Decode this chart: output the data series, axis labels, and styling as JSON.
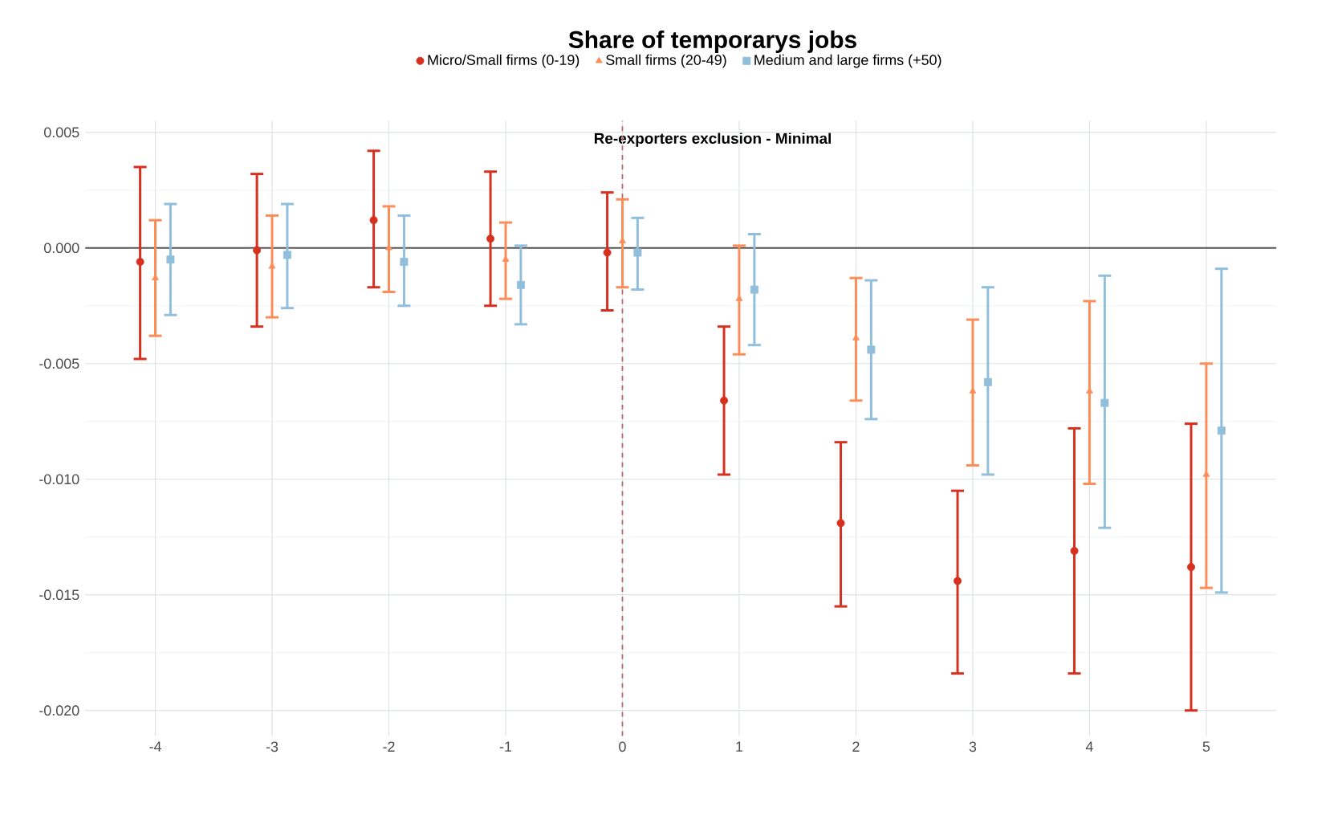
{
  "chart_data": {
    "type": "scatter",
    "title": "Share of temporarys jobs",
    "subtitle": "Re-exporters exclusion - Minimal",
    "xlim": [
      -4.6,
      5.6
    ],
    "xticks": [
      -4,
      -3,
      -2,
      -1,
      0,
      1,
      2,
      3,
      4,
      5
    ],
    "ylim": [
      -0.0211,
      0.0055
    ],
    "yticks": [
      {
        "value": -0.02,
        "label": "-0.020"
      },
      {
        "value": -0.015,
        "label": "-0.015"
      },
      {
        "value": -0.01,
        "label": "-0.010"
      },
      {
        "value": -0.005,
        "label": "-0.005"
      },
      {
        "value": 0,
        "label": "0.000"
      },
      {
        "value": 0.005,
        "label": "0.005"
      }
    ],
    "grid": true,
    "legend": "top",
    "series": [
      {
        "name": "Micro/Small firms (0-19)",
        "color": "#d7301f",
        "marker": "circle",
        "x": [
          -4.13,
          -3.13,
          -2.13,
          -1.13,
          -0.13,
          0.87,
          1.87,
          2.87,
          3.87,
          4.87
        ],
        "values": [
          -0.0006,
          -0.0001,
          0.0012,
          0.0004,
          -0.0002,
          -0.0066,
          -0.0119,
          -0.0144,
          -0.0131,
          -0.0138
        ],
        "errors": [
          [
            -0.0048,
            0.0035
          ],
          [
            -0.0034,
            0.0032
          ],
          [
            -0.0017,
            0.0042
          ],
          [
            -0.0025,
            0.0033
          ],
          [
            -0.0027,
            0.0024
          ],
          [
            -0.0098,
            -0.0034
          ],
          [
            -0.0155,
            -0.0084
          ],
          [
            -0.0184,
            -0.0105
          ],
          [
            -0.0184,
            -0.0078
          ],
          [
            -0.02,
            -0.0076
          ]
        ]
      },
      {
        "name": "Small firms (20-49)",
        "color": "#fc8d59",
        "marker": "triangle",
        "x": [
          -4,
          -3,
          -2,
          -1,
          0,
          1,
          2,
          3,
          4,
          5
        ],
        "values": [
          -0.0013,
          -0.0008,
          0.0,
          -0.0005,
          0.0003,
          -0.0022,
          -0.0039,
          -0.0062,
          -0.0062,
          -0.0098
        ],
        "errors": [
          [
            -0.0038,
            0.0012
          ],
          [
            -0.003,
            0.0014
          ],
          [
            -0.0019,
            0.0018
          ],
          [
            -0.0022,
            0.0011
          ],
          [
            -0.0017,
            0.0021
          ],
          [
            -0.0046,
            0.0001
          ],
          [
            -0.0066,
            -0.0013
          ],
          [
            -0.0094,
            -0.0031
          ],
          [
            -0.0102,
            -0.0023
          ],
          [
            -0.0147,
            -0.005
          ]
        ]
      },
      {
        "name": "Medium and large firms (+50)",
        "color": "#91bfdb",
        "marker": "square",
        "x": [
          -3.87,
          -2.87,
          -1.87,
          -0.87,
          0.13,
          1.13,
          2.13,
          3.13,
          4.13,
          5.13
        ],
        "values": [
          -0.0005,
          -0.0003,
          -0.0006,
          -0.0016,
          -0.0002,
          -0.0018,
          -0.0044,
          -0.0058,
          -0.0067,
          -0.0079
        ],
        "errors": [
          [
            -0.0029,
            0.0019
          ],
          [
            -0.0026,
            0.0019
          ],
          [
            -0.0025,
            0.0014
          ],
          [
            -0.0033,
            0.0001
          ],
          [
            -0.0018,
            0.0013
          ],
          [
            -0.0042,
            0.0006
          ],
          [
            -0.0074,
            -0.0014
          ],
          [
            -0.0098,
            -0.0017
          ],
          [
            -0.0121,
            -0.0012
          ],
          [
            -0.0149,
            -0.0009
          ]
        ]
      }
    ],
    "ref_lines": [
      {
        "axis": "y",
        "value": 0,
        "color": "#555555",
        "line_style": "solid"
      },
      {
        "axis": "x",
        "value": 0,
        "color": "#b5676b",
        "line_style": "dashed"
      }
    ]
  }
}
